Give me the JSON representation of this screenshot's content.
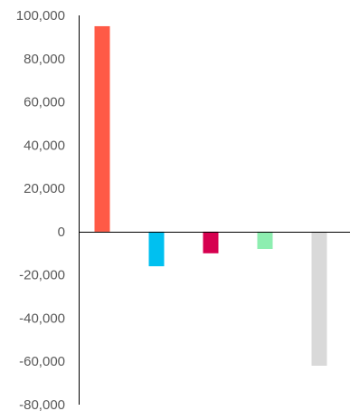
{
  "chart_data": {
    "type": "bar",
    "title": "",
    "xlabel": "",
    "ylabel": "",
    "ylim": [
      -80000,
      100000
    ],
    "yticks": [
      100000,
      80000,
      60000,
      40000,
      20000,
      0,
      -20000,
      -40000,
      -60000,
      -80000
    ],
    "ytick_labels": [
      "100,000",
      "80,000",
      "60,000",
      "40,000",
      "20,000",
      "0",
      "-20,000",
      "-40,000",
      "-60,000",
      "-80,000"
    ],
    "grid": false,
    "legend": "none",
    "bars": [
      {
        "value": 95000,
        "color": "#ff5a46"
      },
      {
        "value": -16000,
        "color": "#00c0f0"
      },
      {
        "value": -10000,
        "color": "#d6004f"
      },
      {
        "value": -8000,
        "color": "#8deeb0"
      },
      {
        "value": -62000,
        "color": "#d9d9d9"
      }
    ]
  }
}
